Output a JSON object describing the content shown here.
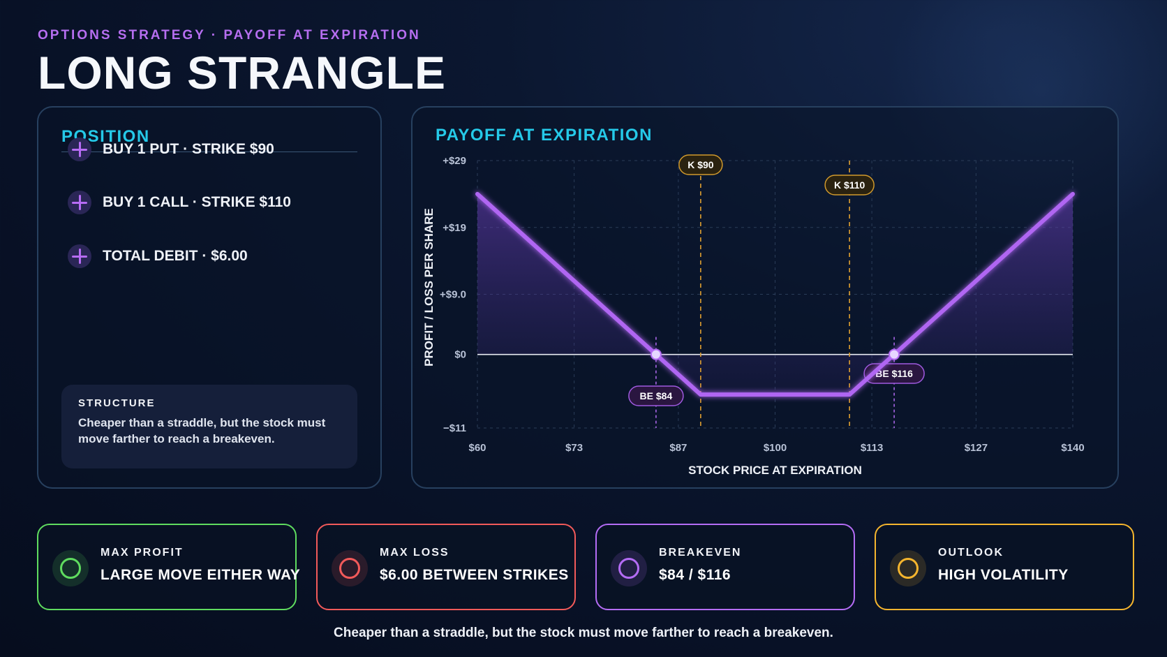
{
  "header": {
    "eyebrow": "OPTIONS STRATEGY · PAYOFF AT EXPIRATION",
    "title": "LONG STRANGLE"
  },
  "position": {
    "heading": "POSITION",
    "legs": [
      {
        "icon": "plus-icon",
        "text": "BUY 1 PUT · STRIKE $90"
      },
      {
        "icon": "plus-icon",
        "text": "BUY 1 CALL · STRIKE $110"
      },
      {
        "icon": "plus-icon",
        "text": "TOTAL DEBIT · $6.00"
      }
    ],
    "structure_label": "STRUCTURE",
    "structure_text": "Cheaper than a straddle, but the stock must move farther to reach a breakeven."
  },
  "chart_panel": {
    "heading": "PAYOFF AT EXPIRATION"
  },
  "chart_data": {
    "type": "line",
    "xlabel": "STOCK PRICE AT EXPIRATION",
    "ylabel": "PROFIT / LOSS PER SHARE",
    "xlim": [
      60,
      140
    ],
    "ylim": [
      -11,
      29
    ],
    "x_ticks": [
      60,
      73,
      87,
      100,
      113,
      127,
      140
    ],
    "x_tick_labels": [
      "$60",
      "$73",
      "$87",
      "$100",
      "$113",
      "$127",
      "$140"
    ],
    "y_ticks": [
      -11,
      0,
      9,
      19,
      29
    ],
    "y_tick_labels": [
      "−$11",
      "$0",
      "+$9.0",
      "+$19",
      "+$29"
    ],
    "grid": true,
    "series": [
      {
        "x": [
          60,
          84,
          90,
          110,
          116,
          140
        ],
        "y": [
          24,
          0,
          -6,
          -6,
          0,
          24
        ],
        "color": "#b066f2"
      }
    ],
    "strikes": [
      {
        "x": 90,
        "label": "K $90"
      },
      {
        "x": 110,
        "label": "K $110"
      }
    ],
    "breakevens": [
      {
        "x": 84,
        "label": "BE $84"
      },
      {
        "x": 116,
        "label": "BE $116"
      }
    ]
  },
  "stats": [
    {
      "label": "MAX PROFIT",
      "value": "LARGE MOVE EITHER WAY",
      "color": "#5fdc5f",
      "icon": "circle-icon"
    },
    {
      "label": "MAX LOSS",
      "value": "$6.00 BETWEEN STRIKES",
      "color": "#f25a5a",
      "icon": "circle-icon"
    },
    {
      "label": "BREAKEVEN",
      "value": "$84 / $116",
      "color": "#b46cf5",
      "icon": "circle-icon"
    },
    {
      "label": "OUTLOOK",
      "value": "HIGH VOLATILITY",
      "color": "#f5b52e",
      "icon": "circle-icon"
    }
  ],
  "footer": "Cheaper than a straddle, but the stock must move farther to reach a breakeven."
}
